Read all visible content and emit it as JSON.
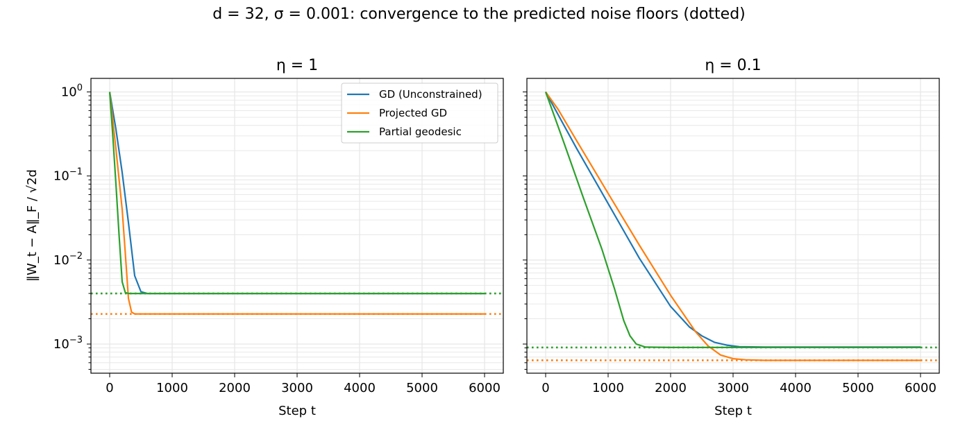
{
  "figure": {
    "title": "d = 32, σ = 0.001: convergence to the predicted noise floors (dotted)",
    "ylabel": "‖W_t − A‖_F / √2d"
  },
  "colors": {
    "gd": "#1f77b4",
    "projected": "#ff7f0e",
    "geodesic": "#2ca02c"
  },
  "legend": [
    {
      "name": "GD (Unconstrained)",
      "color": "#1f77b4"
    },
    {
      "name": "Projected GD",
      "color": "#ff7f0e"
    },
    {
      "name": "Partial geodesic",
      "color": "#2ca02c"
    }
  ],
  "chart_data": [
    {
      "type": "line",
      "title": "η = 1",
      "xlabel": "Step t",
      "ylabel": "‖W_t − A‖_F / √2d",
      "yscale": "log",
      "xlim": [
        -300,
        6300
      ],
      "ylim": [
        0.00045,
        1.45
      ],
      "xticks": [
        0,
        1000,
        2000,
        3000,
        4000,
        5000,
        6000
      ],
      "yticks": [
        {
          "value": 1,
          "base": "10",
          "exp": "0"
        },
        {
          "value": 0.1,
          "base": "10",
          "exp": "−1"
        },
        {
          "value": 0.01,
          "base": "10",
          "exp": "−2"
        },
        {
          "value": 0.001,
          "base": "10",
          "exp": "−3"
        }
      ],
      "grid": true,
      "legend_position": "top-right",
      "series": [
        {
          "name": "GD (Unconstrained)",
          "color": "#1f77b4",
          "x": [
            0,
            100,
            200,
            300,
            400,
            500,
            600,
            1000,
            2000,
            3000,
            4000,
            5000,
            6000
          ],
          "y": [
            1,
            0.36,
            0.11,
            0.028,
            0.0065,
            0.0042,
            0.004,
            0.004,
            0.004,
            0.004,
            0.004,
            0.004,
            0.004
          ]
        },
        {
          "name": "Projected GD",
          "color": "#ff7f0e",
          "x": [
            0,
            100,
            200,
            250,
            300,
            350,
            400,
            1000,
            2000,
            3000,
            4000,
            5000,
            6000
          ],
          "y": [
            1,
            0.21,
            0.04,
            0.012,
            0.0035,
            0.0024,
            0.00228,
            0.00228,
            0.00228,
            0.00228,
            0.00228,
            0.00228,
            0.00228
          ]
        },
        {
          "name": "Partial geodesic",
          "color": "#2ca02c",
          "x": [
            0,
            50,
            100,
            150,
            200,
            250,
            300,
            1000,
            2000,
            3000,
            4000,
            5000,
            6000
          ],
          "y": [
            1,
            0.3,
            0.08,
            0.02,
            0.0055,
            0.0041,
            0.004,
            0.004,
            0.004,
            0.004,
            0.004,
            0.004,
            0.004
          ]
        }
      ],
      "floors": [
        {
          "color": "#2ca02c",
          "y": 0.004
        },
        {
          "color": "#ff7f0e",
          "y": 0.00228
        }
      ]
    },
    {
      "type": "line",
      "title": "η = 0.1",
      "xlabel": "Step t",
      "yscale": "log",
      "xlim": [
        -300,
        6300
      ],
      "ylim": [
        0.00045,
        1.45
      ],
      "xticks": [
        0,
        1000,
        2000,
        3000,
        4000,
        5000,
        6000
      ],
      "grid": true,
      "series": [
        {
          "name": "GD (Unconstrained)",
          "color": "#1f77b4",
          "x": [
            0,
            500,
            1000,
            1500,
            2000,
            2300,
            2500,
            2700,
            2900,
            3100,
            3500,
            4000,
            5000,
            6000
          ],
          "y": [
            1,
            0.21,
            0.047,
            0.0105,
            0.0028,
            0.0016,
            0.00125,
            0.00105,
            0.00097,
            0.00093,
            0.00092,
            0.00092,
            0.00092,
            0.00092
          ]
        },
        {
          "name": "Projected GD",
          "color": "#ff7f0e",
          "x": [
            0,
            200,
            500,
            1000,
            1500,
            2000,
            2400,
            2600,
            2800,
            3000,
            3200,
            3500,
            4000,
            5000,
            6000
          ],
          "y": [
            1,
            0.62,
            0.26,
            0.062,
            0.015,
            0.0038,
            0.0014,
            0.00095,
            0.00074,
            0.00067,
            0.00065,
            0.00064,
            0.00064,
            0.00064,
            0.00064
          ]
        },
        {
          "name": "Partial geodesic",
          "color": "#2ca02c",
          "x": [
            0,
            300,
            600,
            900,
            1100,
            1250,
            1350,
            1450,
            1600,
            2000,
            3000,
            4000,
            5000,
            6000
          ],
          "y": [
            1,
            0.24,
            0.056,
            0.0135,
            0.0046,
            0.0019,
            0.00125,
            0.001,
            0.00092,
            0.00091,
            0.00091,
            0.00091,
            0.00091,
            0.00091
          ]
        }
      ],
      "floors": [
        {
          "color": "#2ca02c",
          "y": 0.00091
        },
        {
          "color": "#ff7f0e",
          "y": 0.00064
        }
      ]
    }
  ]
}
